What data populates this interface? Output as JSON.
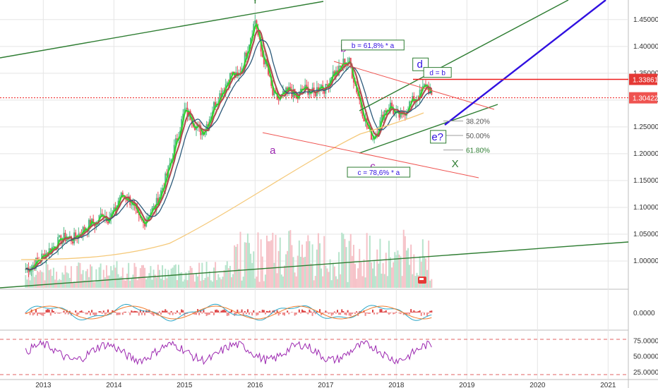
{
  "chart_data": [
    {
      "type": "candlestick",
      "panel": "price",
      "ylim": [
        0.95,
        1.48
      ],
      "x_range": [
        "2012-09",
        "2021-09"
      ],
      "y_ticks": [
        "1.45000",
        "1.40000",
        "1.35000",
        "1.30000",
        "1.25000",
        "1.20000",
        "1.15000",
        "1.10000",
        "1.05000",
        "1.00000"
      ],
      "price_labels": {
        "upper": "1.33861",
        "current": "1.30422"
      },
      "price_levels": {
        "upper": 1.33861,
        "current": 1.30422
      },
      "wave_labels": [
        {
          "text": "Y",
          "date": "2016-01",
          "price": 1.48
        },
        {
          "text": "a",
          "date": "2016-04",
          "price": 1.2
        },
        {
          "text": "b",
          "date": "2017-04",
          "price": 1.39
        },
        {
          "text": "c",
          "date": "2017-09",
          "price": 1.17
        },
        {
          "text": "d",
          "date": "2018-05",
          "price": 1.36
        },
        {
          "text": "e?",
          "date": "2018-08",
          "price": 1.225
        },
        {
          "text": "X",
          "date": "2018-11",
          "price": 1.175
        }
      ],
      "annotations": [
        {
          "text": "b = 61,8% * a",
          "date": "2017-09",
          "price": 1.4
        },
        {
          "text": "c = 78,6% * a",
          "date": "2017-10",
          "price": 1.163
        },
        {
          "text": "d = b",
          "date": "2018-08",
          "price": 1.349
        }
      ],
      "fib_levels": [
        {
          "label": "38.20%",
          "price": 1.261
        },
        {
          "label": "50.00%",
          "price": 1.234
        },
        {
          "label": "61.80%",
          "price": 1.207
        }
      ],
      "series": [
        {
          "name": "price",
          "kind": "candles",
          "color_up": "#53b987",
          "color_down": "#eb4d5c",
          "points": [
            [
              "2012-10",
              0.985
            ],
            [
              "2012-11",
              0.99
            ],
            [
              "2012-12",
              1.0
            ],
            [
              "2013-01",
              1.01
            ],
            [
              "2013-02",
              1.02
            ],
            [
              "2013-03",
              1.03
            ],
            [
              "2013-04",
              1.04
            ],
            [
              "2013-05",
              1.045
            ],
            [
              "2013-06",
              1.04
            ],
            [
              "2013-07",
              1.05
            ],
            [
              "2013-08",
              1.06
            ],
            [
              "2013-09",
              1.07
            ],
            [
              "2013-10",
              1.07
            ],
            [
              "2013-11",
              1.09
            ],
            [
              "2013-12",
              1.08
            ],
            [
              "2014-01",
              1.09
            ],
            [
              "2014-02",
              1.12
            ],
            [
              "2014-03",
              1.12
            ],
            [
              "2014-04",
              1.11
            ],
            [
              "2014-05",
              1.08
            ],
            [
              "2014-06",
              1.07
            ],
            [
              "2014-07",
              1.09
            ],
            [
              "2014-08",
              1.1
            ],
            [
              "2014-09",
              1.13
            ],
            [
              "2014-10",
              1.16
            ],
            [
              "2014-11",
              1.2
            ],
            [
              "2014-12",
              1.24
            ],
            [
              "2015-01",
              1.28
            ],
            [
              "2015-02",
              1.27
            ],
            [
              "2015-03",
              1.25
            ],
            [
              "2015-04",
              1.24
            ],
            [
              "2015-05",
              1.26
            ],
            [
              "2015-06",
              1.29
            ],
            [
              "2015-07",
              1.31
            ],
            [
              "2015-08",
              1.33
            ],
            [
              "2015-09",
              1.35
            ],
            [
              "2015-10",
              1.34
            ],
            [
              "2015-11",
              1.37
            ],
            [
              "2015-12",
              1.41
            ],
            [
              "2016-01",
              1.45
            ],
            [
              "2016-02",
              1.39
            ],
            [
              "2016-03",
              1.36
            ],
            [
              "2016-04",
              1.31
            ],
            [
              "2016-05",
              1.3
            ],
            [
              "2016-06",
              1.31
            ],
            [
              "2016-07",
              1.32
            ],
            [
              "2016-08",
              1.3
            ],
            [
              "2016-09",
              1.32
            ],
            [
              "2016-10",
              1.32
            ],
            [
              "2016-11",
              1.31
            ],
            [
              "2016-12",
              1.33
            ],
            [
              "2017-01",
              1.32
            ],
            [
              "2017-02",
              1.35
            ],
            [
              "2017-03",
              1.35
            ],
            [
              "2017-04",
              1.37
            ],
            [
              "2017-05",
              1.37
            ],
            [
              "2017-06",
              1.33
            ],
            [
              "2017-07",
              1.29
            ],
            [
              "2017-08",
              1.25
            ],
            [
              "2017-09",
              1.23
            ],
            [
              "2017-10",
              1.25
            ],
            [
              "2017-11",
              1.28
            ],
            [
              "2017-12",
              1.29
            ],
            [
              "2018-01",
              1.27
            ],
            [
              "2018-02",
              1.27
            ],
            [
              "2018-03",
              1.29
            ],
            [
              "2018-04",
              1.3
            ],
            [
              "2018-05",
              1.31
            ],
            [
              "2018-06",
              1.33
            ],
            [
              "2018-07",
              1.31
            ]
          ]
        },
        {
          "name": "moving-average-fast",
          "kind": "line",
          "color": "#2fd32f"
        },
        {
          "name": "moving-average-mid",
          "kind": "line",
          "color": "#b05050"
        },
        {
          "name": "moving-average-slow",
          "kind": "line",
          "color": "#2c5a7a"
        },
        {
          "name": "moving-average-long",
          "kind": "line",
          "color": "#f5c97a"
        }
      ]
    },
    {
      "type": "bar",
      "panel": "oscillator",
      "y_ticks": [
        "0.0000"
      ]
    },
    {
      "type": "line",
      "panel": "momentum",
      "y_ticks": [
        "75.0000",
        "50.0000",
        "25.0000"
      ],
      "ylim": [
        15,
        90
      ],
      "series": [
        {
          "name": "momentum",
          "color": "#9c27b0"
        }
      ]
    }
  ],
  "x_axis": {
    "tick_labels": [
      "2013",
      "2014",
      "2015",
      "2016",
      "2017",
      "2018",
      "2019",
      "2020",
      "2021"
    ]
  },
  "colors": {
    "trend_green": "#2e7d32",
    "blue": "#3010e0",
    "red": "#ee1c1c",
    "purple": "#9c27b0",
    "grid": "#e5e5e5"
  },
  "icons": [
    "flag-icon"
  ]
}
